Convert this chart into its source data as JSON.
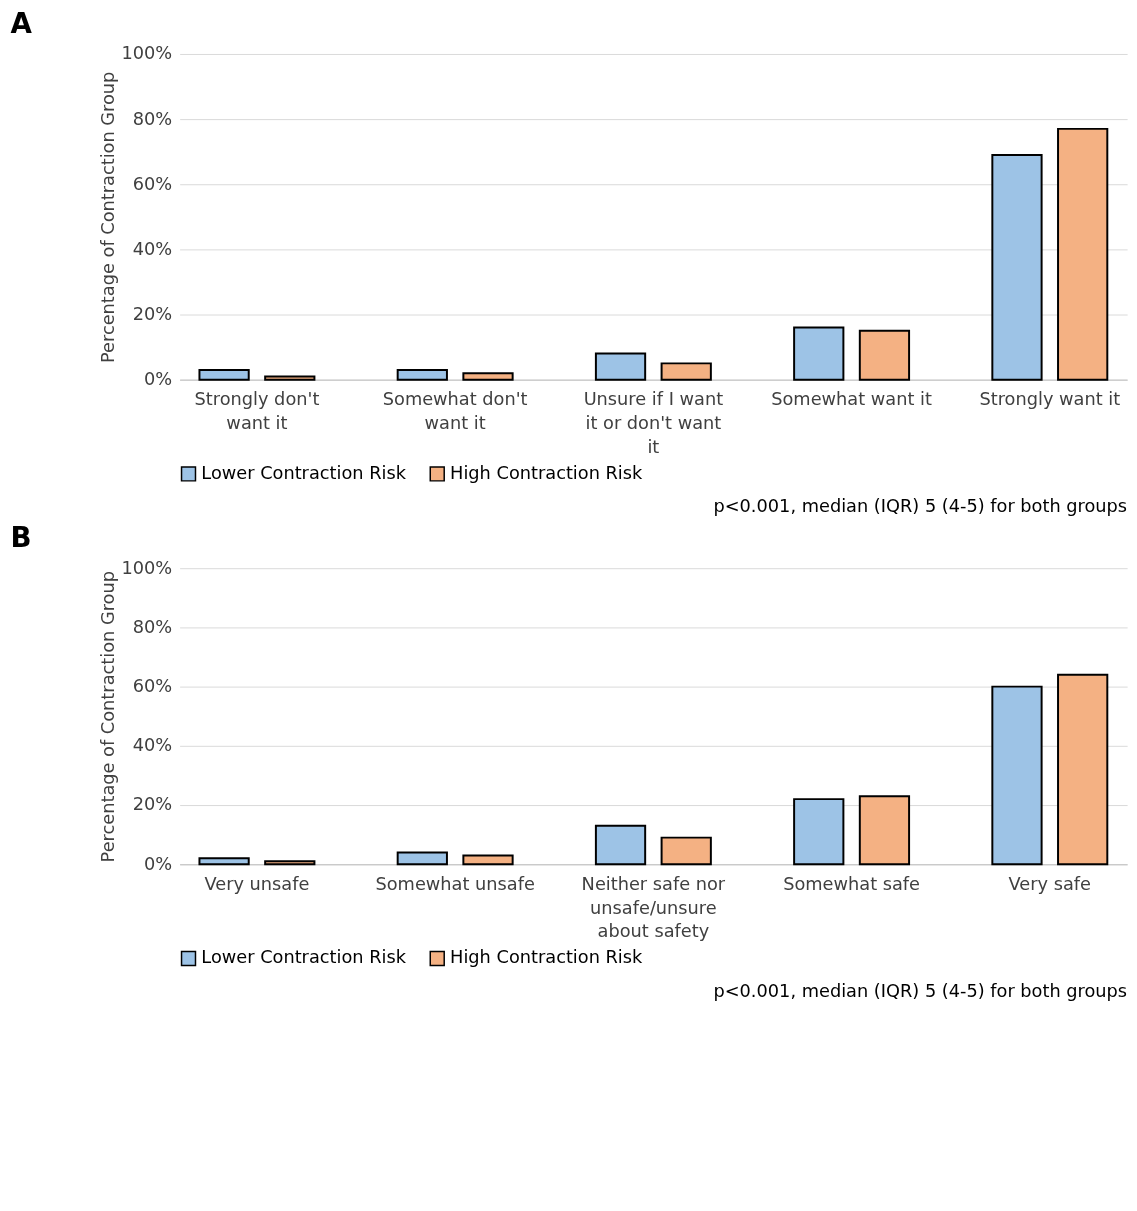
{
  "chart_data": [
    {
      "type": "bar",
      "title": "A",
      "ylabel": "Percentage of Contraction Group",
      "categories": [
        "Strongly don't want it",
        "Somewhat don't want it",
        "Unsure if I want it or don't want it",
        "Somewhat want it",
        "Strongly want it"
      ],
      "series": [
        {
          "name": "Lower Contraction Risk",
          "color": "#9dc3e6",
          "values": [
            3,
            3,
            8,
            16,
            69
          ]
        },
        {
          "name": "High Contraction Risk",
          "color": "#f4b183",
          "values": [
            1,
            2,
            5,
            15,
            77
          ]
        }
      ],
      "ylim": [
        0,
        100
      ],
      "yticks": [
        {
          "value": 0,
          "label": "0%"
        },
        {
          "value": 20,
          "label": "20%"
        },
        {
          "value": 40,
          "label": "40%"
        },
        {
          "value": 60,
          "label": "60%"
        },
        {
          "value": 80,
          "label": "80%"
        },
        {
          "value": 100,
          "label": "100%"
        }
      ],
      "grid": "y",
      "legend": "bottom",
      "annotations": [
        "p<0.001, median (IQR) 5 (4-5) for both groups"
      ]
    },
    {
      "type": "bar",
      "title": "B",
      "ylabel": "Percentage of Contraction Group",
      "categories": [
        "Very unsafe",
        "Somewhat unsafe",
        "Neither safe nor unsafe/unsure about safety",
        "Somewhat safe",
        "Very safe"
      ],
      "series": [
        {
          "name": "Lower Contraction Risk",
          "color": "#9dc3e6",
          "values": [
            2,
            4,
            13,
            22,
            60
          ]
        },
        {
          "name": "High Contraction Risk",
          "color": "#f4b183",
          "values": [
            1,
            3,
            9,
            23,
            64
          ]
        }
      ],
      "ylim": [
        0,
        100
      ],
      "yticks": [
        {
          "value": 0,
          "label": "0%"
        },
        {
          "value": 20,
          "label": "20%"
        },
        {
          "value": 40,
          "label": "40%"
        },
        {
          "value": 60,
          "label": "60%"
        },
        {
          "value": 80,
          "label": "80%"
        },
        {
          "value": 100,
          "label": "100%"
        }
      ],
      "grid": "y",
      "legend": "bottom",
      "annotations": [
        "p<0.001, median (IQR) 5 (4-5) for both groups"
      ]
    }
  ]
}
